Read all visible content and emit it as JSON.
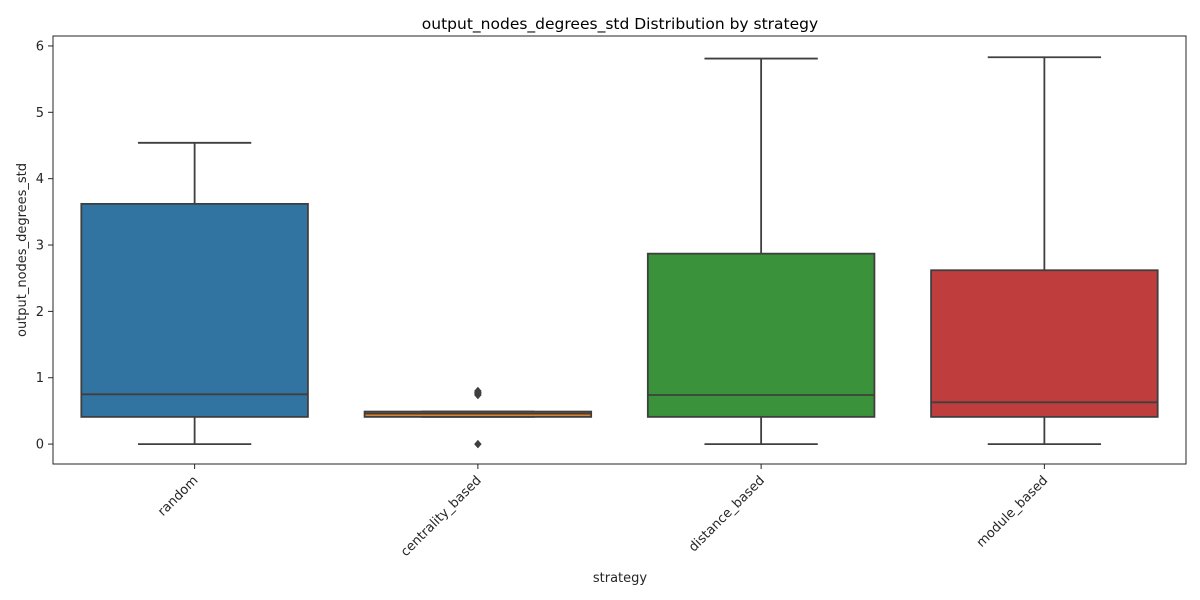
{
  "chart_data": {
    "type": "box",
    "title": "output_nodes_degrees_std Distribution by strategy",
    "xlabel": "strategy",
    "ylabel": "output_nodes_degrees_std",
    "ylim": [
      -0.3,
      6.15
    ],
    "yticks": [
      0,
      1,
      2,
      3,
      4,
      5,
      6
    ],
    "grid": false,
    "x_tick_rotation": 45,
    "categories": [
      "random",
      "centrality_based",
      "distance_based",
      "module_based"
    ],
    "colors": [
      "#3274a1",
      "#e1812c",
      "#3a923a",
      "#c03d3e"
    ],
    "edge_color": "#3f3f3f",
    "boxes": [
      {
        "category": "random",
        "whisker_low": 0.0,
        "q1": 0.41,
        "median": 0.75,
        "q3": 3.62,
        "whisker_high": 4.54,
        "outliers": []
      },
      {
        "category": "centrality_based",
        "whisker_low": 0.41,
        "q1": 0.41,
        "median": 0.46,
        "q3": 0.49,
        "whisker_high": 0.49,
        "outliers": [
          0.0,
          0.74,
          0.76,
          0.78,
          0.8
        ]
      },
      {
        "category": "distance_based",
        "whisker_low": 0.0,
        "q1": 0.41,
        "median": 0.74,
        "q3": 2.87,
        "whisker_high": 5.81,
        "outliers": []
      },
      {
        "category": "module_based",
        "whisker_low": 0.0,
        "q1": 0.41,
        "median": 0.63,
        "q3": 2.62,
        "whisker_high": 5.83,
        "outliers": []
      }
    ]
  }
}
